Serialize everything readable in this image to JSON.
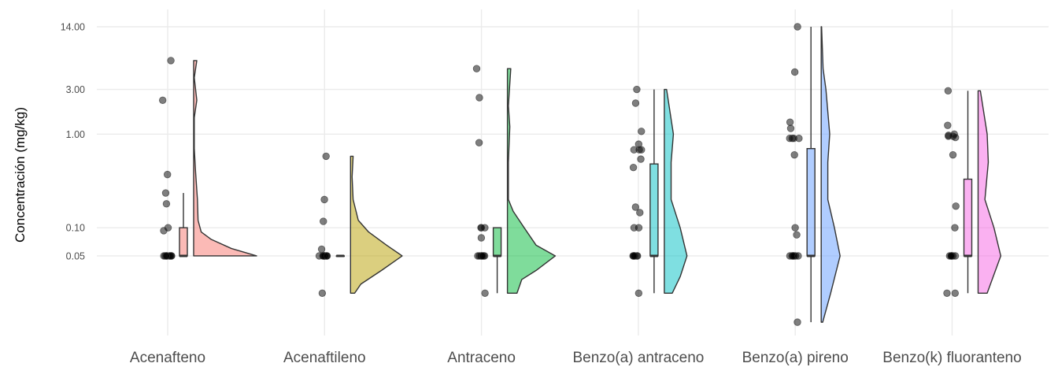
{
  "chart_data": {
    "type": "raincloud",
    "title": "",
    "xlabel": "",
    "ylabel": "Concentración (mg/kg)",
    "yscale": "log10",
    "ylim": [
      0.007,
      21
    ],
    "yticks": [
      0.05,
      0.1,
      1.0,
      3.0,
      14.0
    ],
    "ytick_labels": [
      "0.05",
      "0.10",
      "1.00",
      "3.00",
      "14.00"
    ],
    "grid": true,
    "legend": "none",
    "categories": [
      "Acenafteno",
      "Acenaftileno",
      "Antraceno",
      "Benzo(a) antraceno",
      "Benzo(a) pireno",
      "Benzo(k) fluoranteno"
    ],
    "groups": [
      {
        "name": "Acenafteno",
        "color": "#F8766D",
        "points": [
          6.1,
          2.3,
          0.37,
          0.235,
          0.18,
          0.1,
          0.093,
          0.05,
          0.05,
          0.05,
          0.05,
          0.05,
          0.05,
          0.05,
          0.05,
          0.05,
          0.05
        ],
        "box": {
          "whisker_low": 0.05,
          "q1": 0.05,
          "median": 0.05,
          "q3": 0.1,
          "whisker_high": 0.235
        },
        "density_scale": 1.0,
        "density": [
          [
            0.05,
            1.0
          ],
          [
            0.06,
            0.6
          ],
          [
            0.075,
            0.28
          ],
          [
            0.09,
            0.12
          ],
          [
            0.12,
            0.07
          ],
          [
            0.2,
            0.06
          ],
          [
            0.4,
            0.03
          ],
          [
            0.7,
            0.01
          ],
          [
            1.5,
            0.01
          ],
          [
            2.3,
            0.05
          ],
          [
            4,
            0.01
          ],
          [
            6.1,
            0.05
          ]
        ]
      },
      {
        "name": "Acenaftileno",
        "color": "#B79F00",
        "points": [
          0.58,
          0.2,
          0.117,
          0.059,
          0.05,
          0.05,
          0.05,
          0.05,
          0.05,
          0.05,
          0.05,
          0.05,
          0.05,
          0.05,
          0.02
        ],
        "box": {
          "whisker_low": 0.05,
          "q1": 0.05,
          "median": 0.05,
          "q3": 0.05,
          "whisker_high": 0.05
        },
        "density_scale": 0.82,
        "density": [
          [
            0.02,
            0.08
          ],
          [
            0.025,
            0.2
          ],
          [
            0.035,
            0.6
          ],
          [
            0.05,
            1
          ],
          [
            0.065,
            0.7
          ],
          [
            0.09,
            0.35
          ],
          [
            0.12,
            0.15
          ],
          [
            0.2,
            0.05
          ],
          [
            0.35,
            0.03
          ],
          [
            0.58,
            0.05
          ]
        ]
      },
      {
        "name": "Antraceno",
        "color": "#00BA38",
        "points": [
          5.0,
          2.45,
          0.81,
          0.1,
          0.1,
          0.1,
          0.078,
          0.05,
          0.05,
          0.05,
          0.05,
          0.05,
          0.05,
          0.05,
          0.05,
          0.02
        ],
        "box": {
          "whisker_low": 0.02,
          "q1": 0.05,
          "median": 0.05,
          "q3": 0.1,
          "whisker_high": 0.1
        },
        "density_scale": 0.76,
        "density": [
          [
            0.02,
            0.2
          ],
          [
            0.028,
            0.3
          ],
          [
            0.035,
            0.6
          ],
          [
            0.05,
            1
          ],
          [
            0.065,
            0.6
          ],
          [
            0.1,
            0.35
          ],
          [
            0.15,
            0.12
          ],
          [
            0.2,
            0.02
          ],
          [
            0.5,
            0.02
          ],
          [
            1.2,
            0.05
          ],
          [
            2,
            0.02
          ],
          [
            5,
            0.07
          ]
        ]
      },
      {
        "name": "Benzo(a) antraceno",
        "color": "#00BFC4",
        "points": [
          3.0,
          2.14,
          1.07,
          0.78,
          0.68,
          0.68,
          0.68,
          0.54,
          0.44,
          0.166,
          0.145,
          0.1,
          0.1,
          0.05,
          0.05,
          0.05,
          0.05,
          0.05,
          0.05,
          0.05,
          0.02
        ],
        "box": {
          "whisker_low": 0.02,
          "q1": 0.05,
          "median": 0.05,
          "q3": 0.48,
          "whisker_high": 3.0
        },
        "density_scale": 0.36,
        "density": [
          [
            0.02,
            0.35
          ],
          [
            0.03,
            0.7
          ],
          [
            0.05,
            1
          ],
          [
            0.1,
            0.7
          ],
          [
            0.2,
            0.3
          ],
          [
            0.5,
            0.3
          ],
          [
            1,
            0.4
          ],
          [
            3,
            0.1
          ]
        ]
      },
      {
        "name": "Benzo(a) pireno",
        "color": "#619CFF",
        "points": [
          14.0,
          4.6,
          1.34,
          1.15,
          0.9,
          0.9,
          0.9,
          0.9,
          0.6,
          0.1,
          0.084,
          0.05,
          0.05,
          0.05,
          0.05,
          0.05,
          0.05,
          0.05,
          0.05,
          0.0098
        ],
        "box": {
          "whisker_low": 0.0098,
          "q1": 0.05,
          "median": 0.05,
          "q3": 0.7,
          "whisker_high": 14.0
        },
        "density_scale": 0.3,
        "density": [
          [
            0.0098,
            0.08
          ],
          [
            0.02,
            0.5
          ],
          [
            0.05,
            1
          ],
          [
            0.1,
            0.7
          ],
          [
            0.2,
            0.35
          ],
          [
            0.5,
            0.35
          ],
          [
            1,
            0.45
          ],
          [
            3,
            0.25
          ],
          [
            5,
            0.1
          ],
          [
            14,
            0.02
          ]
        ]
      },
      {
        "name": "Benzo(k) fluoranteno",
        "color": "#F564E3",
        "points": [
          2.9,
          1.24,
          1.0,
          0.97,
          0.95,
          0.95,
          0.92,
          0.6,
          0.17,
          0.1,
          0.05,
          0.05,
          0.05,
          0.05,
          0.05,
          0.05,
          0.05,
          0.02,
          0.02
        ],
        "box": {
          "whisker_low": 0.02,
          "q1": 0.05,
          "median": 0.05,
          "q3": 0.33,
          "whisker_high": 2.9
        },
        "density_scale": 0.36,
        "density": [
          [
            0.02,
            0.4
          ],
          [
            0.05,
            1
          ],
          [
            0.1,
            0.7
          ],
          [
            0.2,
            0.3
          ],
          [
            0.5,
            0.45
          ],
          [
            1,
            0.4
          ],
          [
            2.9,
            0.1
          ]
        ]
      }
    ]
  }
}
